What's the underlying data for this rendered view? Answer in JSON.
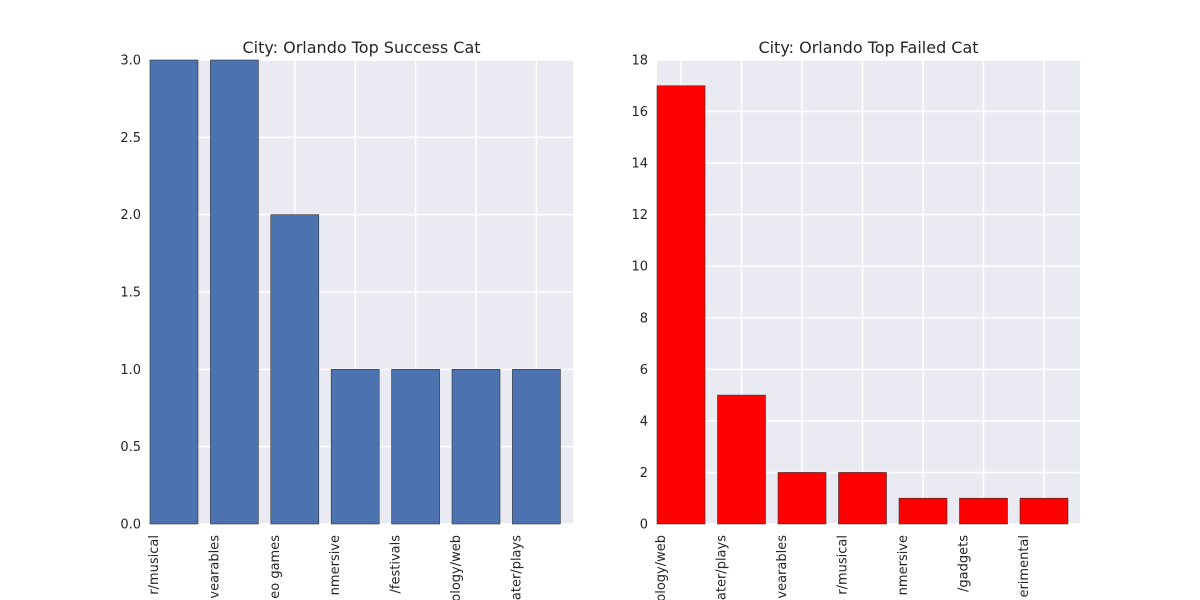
{
  "chart_data": [
    {
      "type": "bar",
      "title": "City: Orlando Top Success Cat",
      "xlabel": "",
      "ylabel": "",
      "categories": [
        "r/musical",
        "vearables",
        "eo games",
        "nmersive",
        "/festivals",
        "ology/web",
        "ater/plays"
      ],
      "values": [
        3,
        3,
        2,
        1,
        1,
        1,
        1
      ],
      "ylim": [
        0,
        3.0
      ],
      "yticks": [
        "0.0",
        "0.5",
        "1.0",
        "1.5",
        "2.0",
        "2.5",
        "3.0"
      ],
      "bar_color": "#4c72b0",
      "grid": true
    },
    {
      "type": "bar",
      "title": "City: Orlando Top Failed Cat",
      "xlabel": "",
      "ylabel": "",
      "categories": [
        "ology/web",
        "ater/plays",
        "vearables",
        "r/musical",
        "nmersive",
        "/gadgets",
        "erimental"
      ],
      "values": [
        17,
        5,
        2,
        2,
        1,
        1,
        1
      ],
      "ylim": [
        0,
        18
      ],
      "yticks": [
        "0",
        "2",
        "4",
        "6",
        "8",
        "10",
        "12",
        "14",
        "16",
        "18"
      ],
      "bar_color": "#ff0000",
      "grid": true
    }
  ]
}
